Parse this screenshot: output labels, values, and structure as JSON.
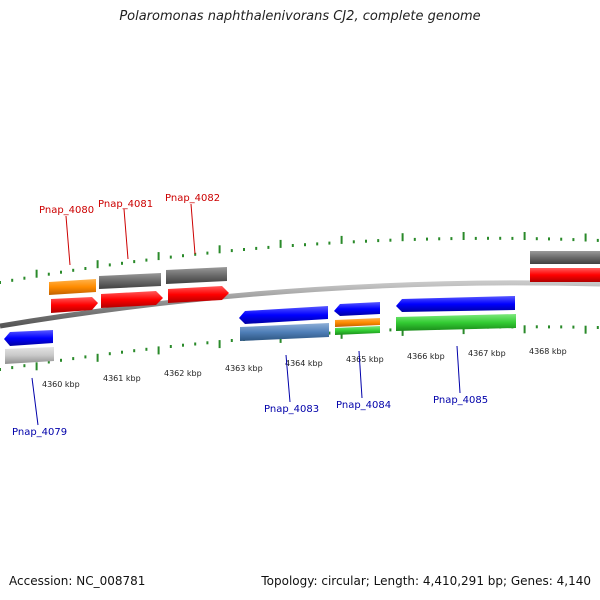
{
  "title": "Polaromonas naphthalenivorans CJ2, complete genome",
  "footer": {
    "accession": "Accession: NC_008781",
    "summary": "Topology: circular; Length: 4,410,291 bp; Genes: 4,140"
  },
  "colors": {
    "backbone": "#8a8a8a",
    "tick": "#2a8a2a",
    "forward_label": "#cc0000",
    "reverse_label": "#0000aa"
  },
  "tick_labels": [
    "4360 kbp",
    "4361 kbp",
    "4362 kbp",
    "4363 kbp",
    "4364 kbp",
    "4365 kbp",
    "4366 kbp",
    "4367 kbp",
    "4368 kbp"
  ],
  "gene_labels": {
    "forward": [
      "Pnap_4080",
      "Pnap_4081",
      "Pnap_4082"
    ],
    "reverse": [
      "Pnap_4079",
      "Pnap_4083",
      "Pnap_4084",
      "Pnap_4085"
    ]
  }
}
